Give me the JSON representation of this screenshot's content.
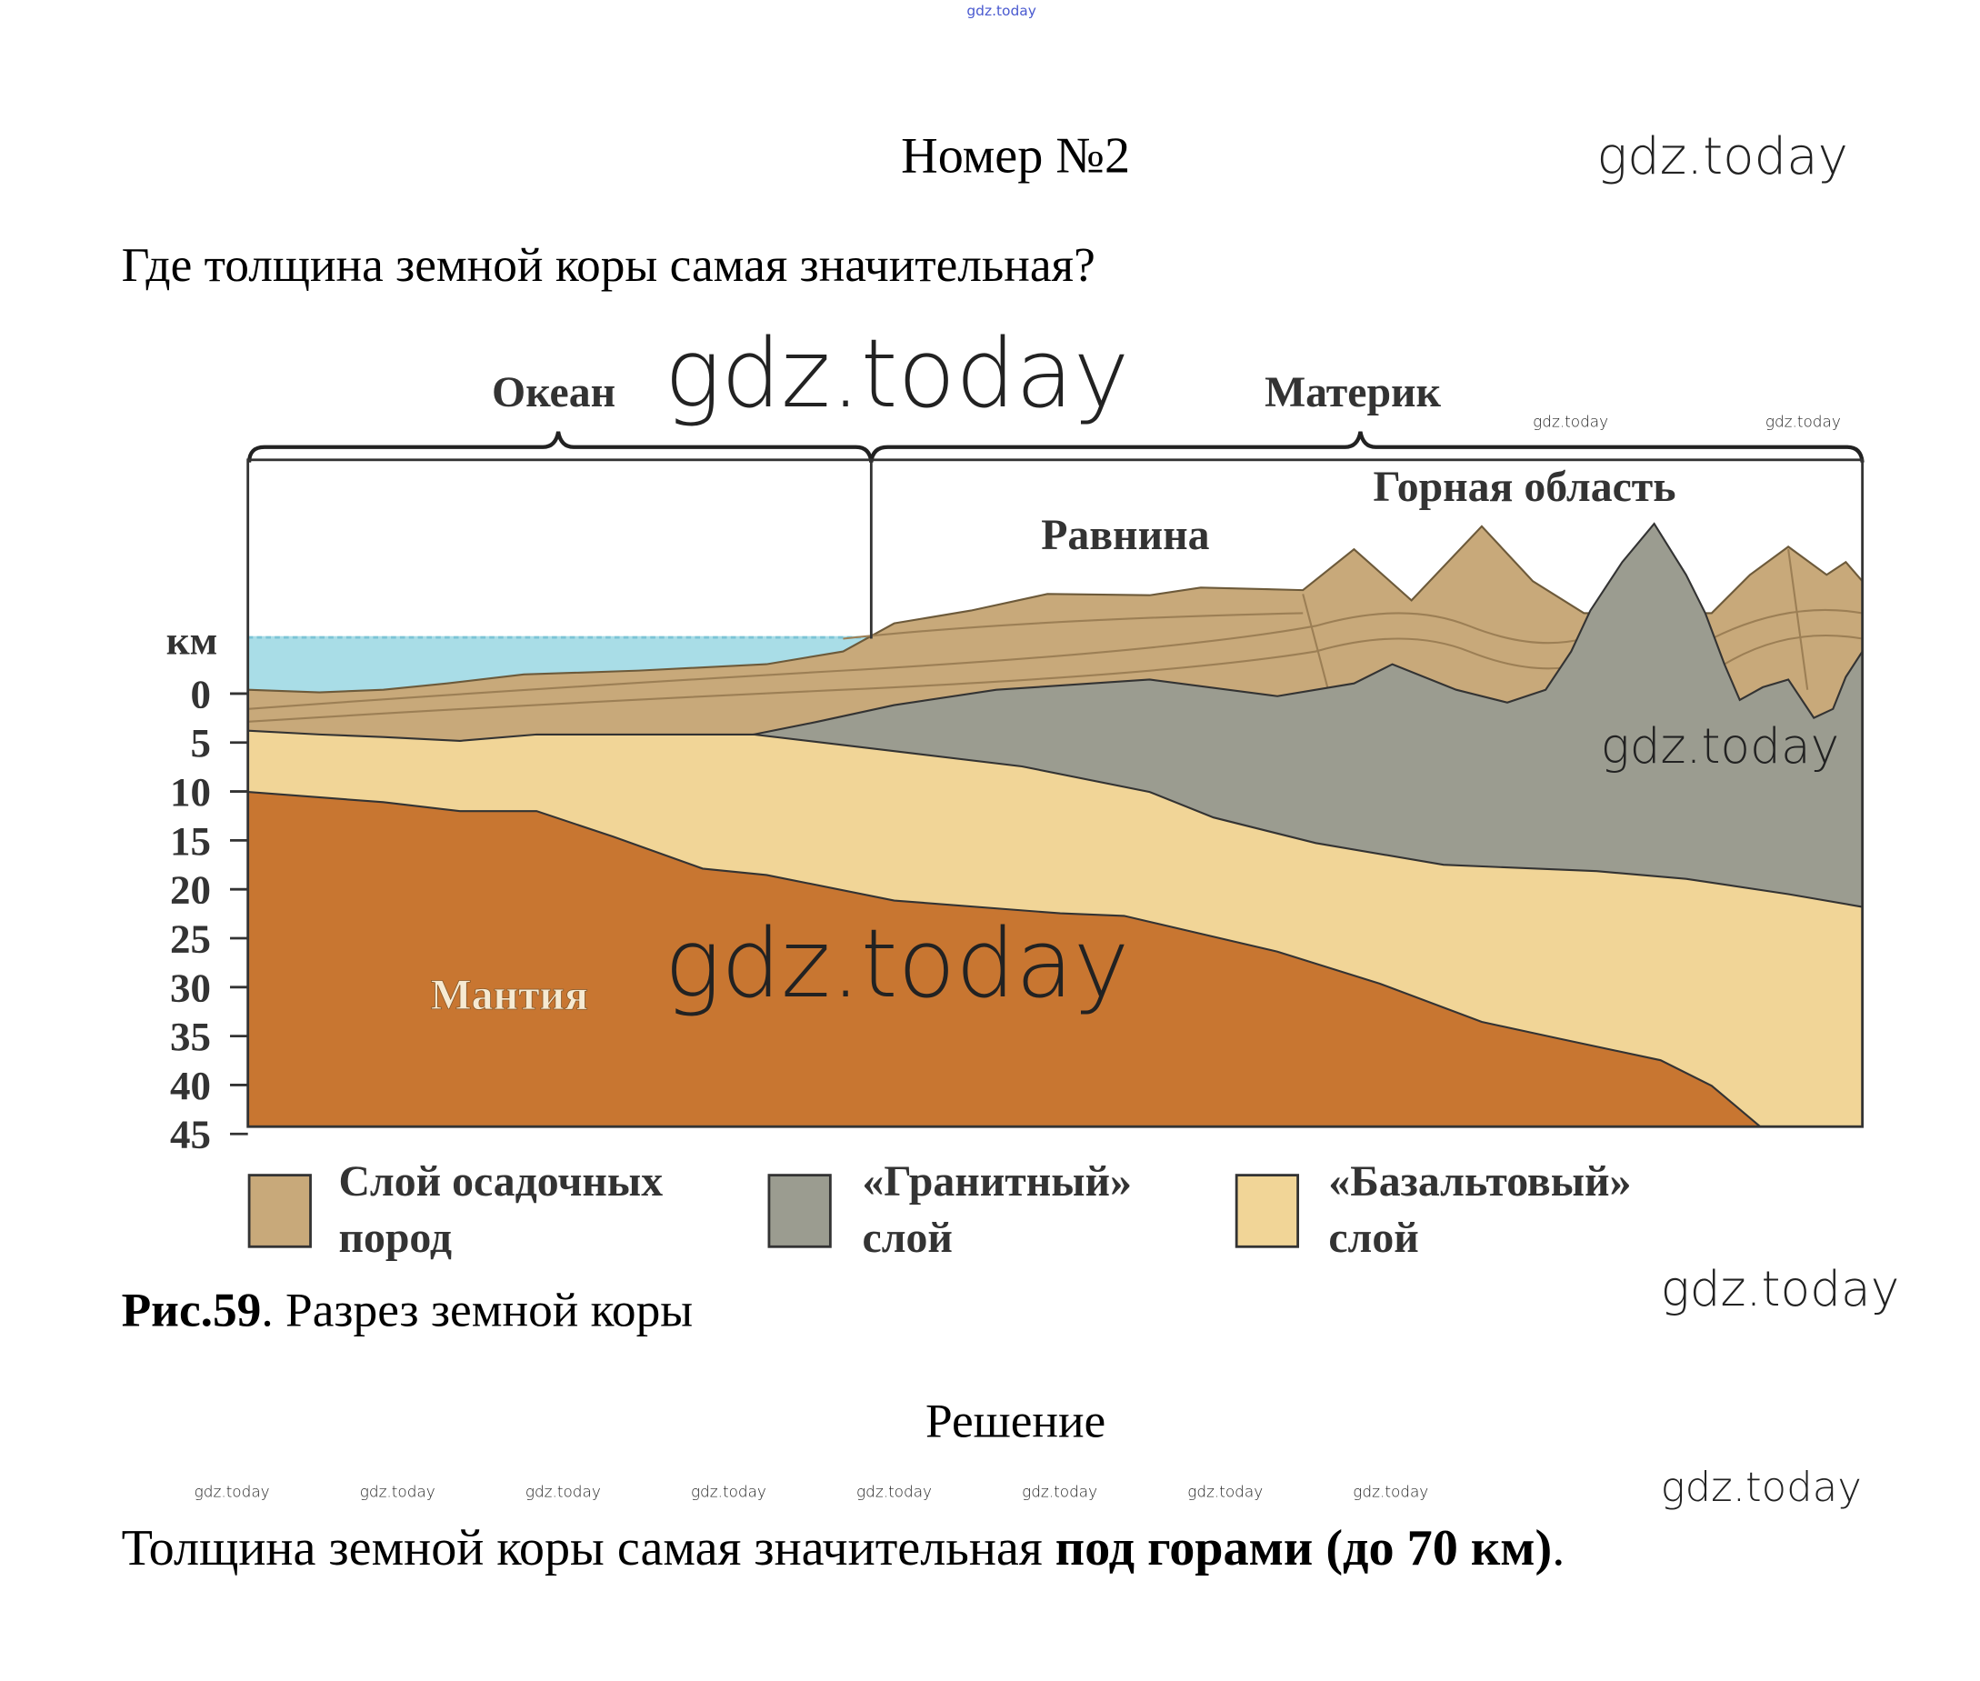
{
  "watermark_top": "gdz.today",
  "watermark": "gdz.today",
  "header": {
    "title": "Номер №2"
  },
  "question": "Где толщина земной коры самая значительная?",
  "figure": {
    "ocean_label": "Океан",
    "continent_label": "Материк",
    "plain_label": "Равнина",
    "mountain_label": "Горная область",
    "mantle_label": "Мантия",
    "axis_unit": "км",
    "axis_ticks": [
      "0",
      "5",
      "10",
      "15",
      "20",
      "25",
      "30",
      "35",
      "40",
      "45"
    ],
    "legend": [
      {
        "line1": "Слой осадочных",
        "line2": "пород",
        "color": "#c8a97a"
      },
      {
        "line1": "«Гранитный»",
        "line2": "слой",
        "color": "#9b9c90"
      },
      {
        "line1": "«Базальтовый»",
        "line2": "слой",
        "color": "#f1d597"
      }
    ],
    "caption_bold": "Рис.59",
    "caption_rest": ". Разрез земной коры"
  },
  "solution": {
    "heading": "Решение",
    "answer_normal": "Толщина земной коры самая значительная ",
    "answer_bold": "под горами (до 70 км)",
    "answer_end": "."
  },
  "colors": {
    "water": "#a9dde7",
    "mantle": "#c87631",
    "sediment": "#c8a97a",
    "granite": "#9b9c90",
    "basalt": "#f1d597"
  }
}
